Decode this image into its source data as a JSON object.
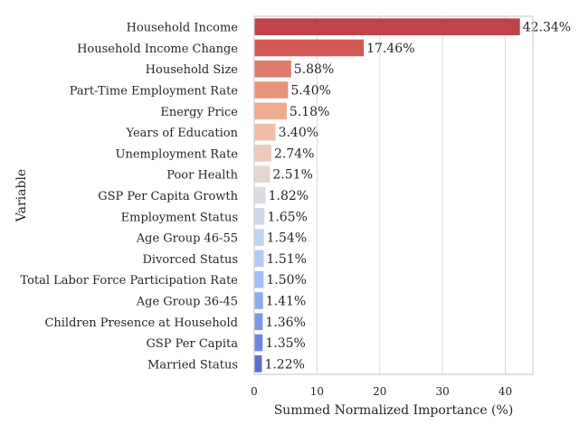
{
  "chart_data": {
    "type": "bar",
    "orientation": "horizontal",
    "xlabel": "Summed Normalized Importance (%)",
    "ylabel": "Variable",
    "xlim": [
      0,
      44.4
    ],
    "xticks": [
      0,
      10,
      20,
      30,
      40
    ],
    "grid": "vertical",
    "categories": [
      "Household Income",
      "Household Income Change",
      "Household Size",
      "Part-Time Employment Rate",
      "Energy Price",
      "Years of Education",
      "Unemployment Rate",
      "Poor Health",
      "GSP Per Capita Growth",
      "Employment Status",
      "Age Group 46-55",
      "Divorced Status",
      "Total Labor Force Participation Rate",
      "Age Group 36-45",
      "Children Presence at Household",
      "GSP Per Capita",
      "Married Status"
    ],
    "values": [
      42.34,
      17.46,
      5.88,
      5.4,
      5.18,
      3.4,
      2.74,
      2.51,
      1.82,
      1.65,
      1.54,
      1.51,
      1.5,
      1.41,
      1.36,
      1.35,
      1.22
    ],
    "value_labels": [
      "42.34%",
      "17.46%",
      "5.88%",
      "5.40%",
      "5.18%",
      "3.40%",
      "2.74%",
      "2.51%",
      "1.82%",
      "1.65%",
      "1.54%",
      "1.51%",
      "1.50%",
      "1.41%",
      "1.36%",
      "1.35%",
      "1.22%"
    ],
    "colors": [
      "#c0424b",
      "#d25a55",
      "#df7a69",
      "#e8947b",
      "#edab90",
      "#f0bea8",
      "#eccbbd",
      "#e6d8d1",
      "#dcdde2",
      "#cfd9ea",
      "#c3d3f2",
      "#b4c9f6",
      "#a3bcf7",
      "#90aaf2",
      "#7f98ea",
      "#6f86e0",
      "#5b6fcf"
    ],
    "palette": "coolwarm (reversed)"
  }
}
